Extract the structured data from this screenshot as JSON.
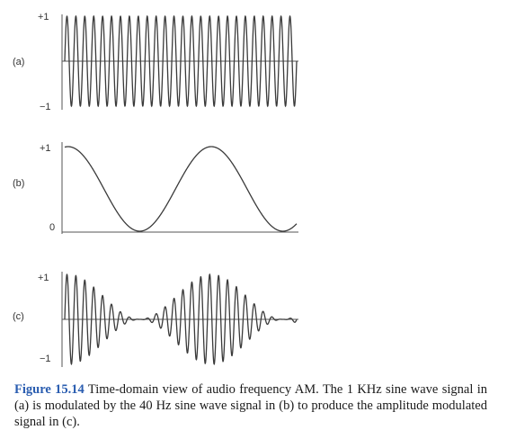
{
  "figure": {
    "panels": [
      {
        "id": "a",
        "label": "(a)",
        "ticks": [
          "+1",
          "−1"
        ],
        "series": {
          "shape": "sine",
          "frequency_hz": 1000,
          "amplitude_min": -1,
          "amplitude_max": 1
        }
      },
      {
        "id": "b",
        "label": "(b)",
        "ticks": [
          "+1",
          "0"
        ],
        "series": {
          "shape": "sine",
          "frequency_hz": 40,
          "amplitude_min": 0,
          "amplitude_max": 1
        }
      },
      {
        "id": "c",
        "label": "(c)",
        "ticks": [
          "+1",
          "−1"
        ],
        "series": {
          "shape": "amplitude modulated sine",
          "carrier_hz": 1000,
          "modulator_hz": 40,
          "amplitude_min": -1,
          "amplitude_max": 1
        }
      }
    ]
  },
  "caption": {
    "label": "Figure 15.14",
    "text": " Time-domain view of audio frequency AM. The 1 KHz sine wave signal in (a) is modulated by the 40 Hz sine wave signal in (b) to produce the amplitude modulated signal in (c)."
  },
  "colors": {
    "trace": "#3a3a3a",
    "axis": "#555555",
    "caption_label": "#2a5db0"
  }
}
